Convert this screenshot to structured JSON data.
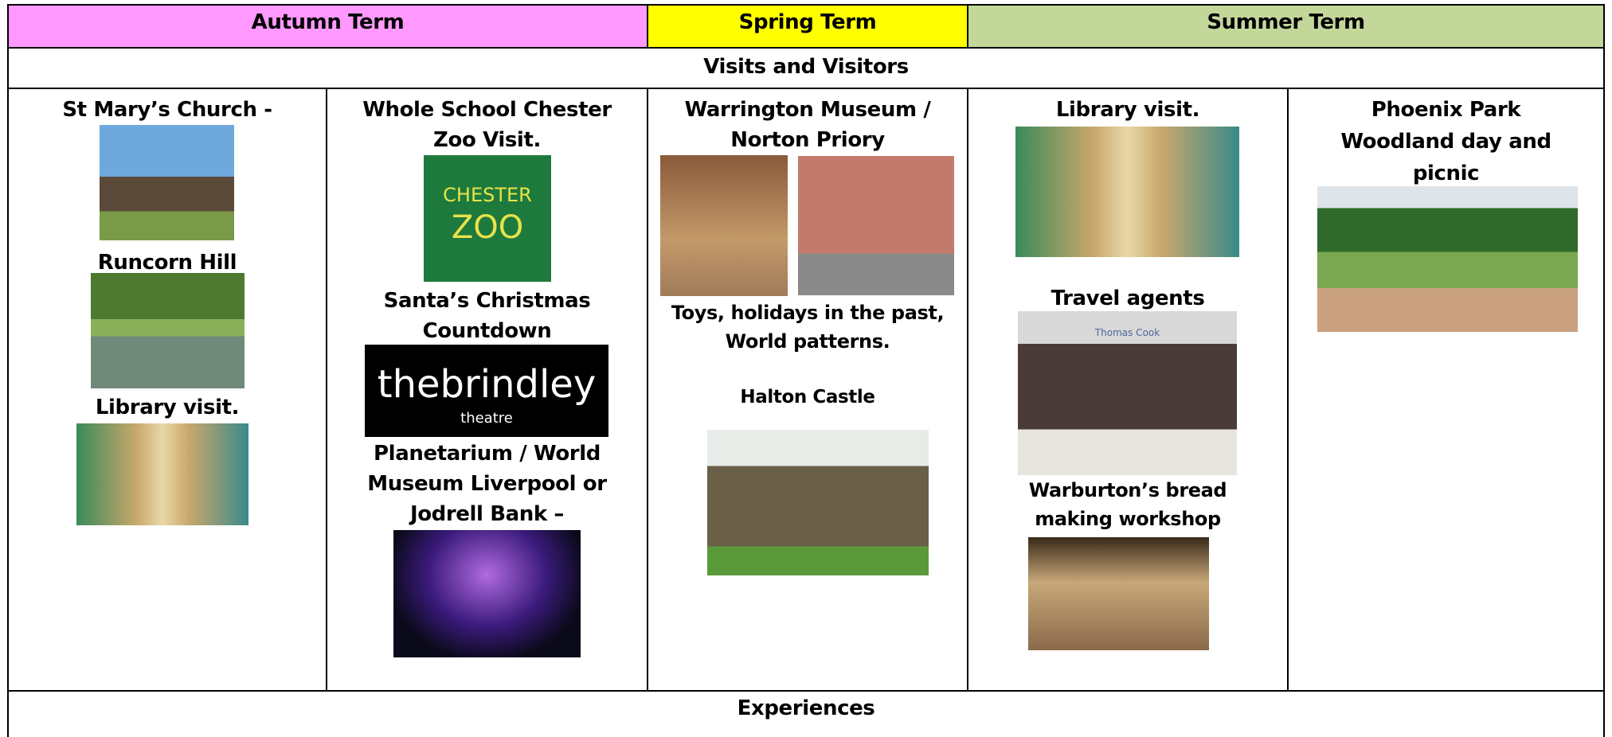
{
  "header": {
    "terms": [
      "Autumn Term",
      "Spring Term",
      "Summer Term"
    ]
  },
  "sections": [
    "Visits and Visitors",
    "Experiences"
  ],
  "columns": [
    {
      "items": [
        [
          "St Mary’s Church -"
        ],
        [
          "Runcorn Hill"
        ],
        [
          "Library visit."
        ]
      ]
    },
    {
      "items": [
        [
          "Whole School Chester",
          "Zoo Visit."
        ],
        [
          "Santa’s Christmas",
          "Countdown"
        ],
        [
          "Planetarium / World",
          "Museum Liverpool or",
          "Jodrell Bank –"
        ]
      ]
    },
    {
      "items": [
        [
          "Warrington Museum /",
          "Norton Priory"
        ],
        [
          "Toys, holidays in the past,",
          "World patterns."
        ],
        [
          "Halton Castle"
        ]
      ]
    },
    {
      "items": [
        [
          "Library visit."
        ],
        [
          "Travel agents"
        ],
        [
          "Warburton’s bread",
          "making workshop"
        ]
      ]
    },
    {
      "items": [
        [
          "Phoenix Park",
          "Woodland day and",
          "picnic"
        ]
      ]
    }
  ],
  "logo_texts": [
    "CHESTER",
    "ZOO",
    "thebrindley",
    "theatre",
    "Thomas Cook"
  ]
}
